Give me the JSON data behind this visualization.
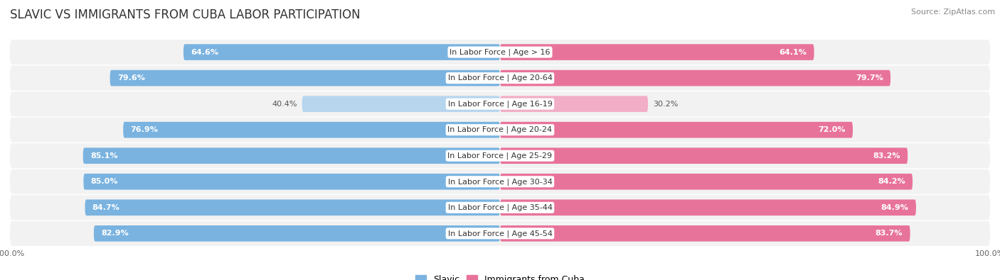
{
  "title": "SLAVIC VS IMMIGRANTS FROM CUBA LABOR PARTICIPATION",
  "source": "Source: ZipAtlas.com",
  "categories": [
    "In Labor Force | Age > 16",
    "In Labor Force | Age 20-64",
    "In Labor Force | Age 16-19",
    "In Labor Force | Age 20-24",
    "In Labor Force | Age 25-29",
    "In Labor Force | Age 30-34",
    "In Labor Force | Age 35-44",
    "In Labor Force | Age 45-54"
  ],
  "slavic_values": [
    64.6,
    79.6,
    40.4,
    76.9,
    85.1,
    85.0,
    84.7,
    82.9
  ],
  "cuba_values": [
    64.1,
    79.7,
    30.2,
    72.0,
    83.2,
    84.2,
    84.9,
    83.7
  ],
  "slavic_color": "#7ab3e0",
  "cuba_color": "#e8739a",
  "slavic_color_light": "#b8d5ee",
  "cuba_color_light": "#f2aec7",
  "max_value": 100.0,
  "bar_height": 0.62,
  "background_color": "#ffffff",
  "row_light_color": "#f0f0f0",
  "row_dark_color": "#e8e8e8",
  "title_fontsize": 12,
  "label_fontsize": 8,
  "value_fontsize": 8,
  "legend_fontsize": 9,
  "tick_fontsize": 8
}
